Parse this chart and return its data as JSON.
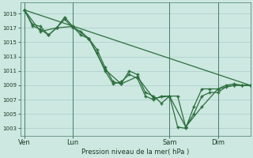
{
  "background_color": "#cce8e0",
  "grid_color": "#aacccc",
  "line_color": "#2d6e3e",
  "xlabel": "Pression niveau de la mer( hPa )",
  "ylim": [
    1002,
    1020.5
  ],
  "yticks": [
    1003,
    1005,
    1007,
    1009,
    1011,
    1013,
    1015,
    1017,
    1019
  ],
  "xtick_labels": [
    "Ven",
    "Lun",
    "Sam",
    "Dim"
  ],
  "xtick_positions": [
    0,
    36,
    108,
    144
  ],
  "vline_positions": [
    0,
    36,
    108,
    144
  ],
  "xlim": [
    -3,
    168
  ],
  "series_smooth": {
    "x": [
      0,
      168
    ],
    "y": [
      1019.5,
      1009.0
    ]
  },
  "series1": {
    "x": [
      0,
      6,
      12,
      18,
      24,
      30,
      36,
      42,
      48,
      54,
      60,
      66,
      72,
      78,
      84,
      90,
      96,
      102,
      108,
      114,
      120,
      126,
      132,
      138,
      144,
      150,
      156,
      162,
      168
    ],
    "y": [
      1019.5,
      1017.5,
      1017.2,
      1016.0,
      1017.0,
      1018.2,
      1017.0,
      1016.5,
      1015.5,
      1014.0,
      1011.5,
      1009.5,
      1009.2,
      1011.0,
      1010.5,
      1008.0,
      1007.5,
      1006.5,
      1007.5,
      1003.2,
      1003.0,
      1006.0,
      1008.5,
      1008.5,
      1008.5,
      1009.0,
      1009.2,
      1009.0,
      1009.0
    ]
  },
  "series2": {
    "x": [
      0,
      6,
      12,
      18,
      24,
      30,
      36,
      42,
      48,
      54,
      60,
      66,
      72,
      78,
      84,
      90,
      96,
      102,
      108,
      114,
      120,
      126,
      132,
      138,
      144,
      150,
      156,
      162,
      168
    ],
    "y": [
      1019.5,
      1017.3,
      1016.8,
      1016.0,
      1017.0,
      1018.5,
      1017.2,
      1016.0,
      1015.5,
      1013.5,
      1011.0,
      1009.2,
      1009.5,
      1010.5,
      1010.0,
      1007.5,
      1007.0,
      1007.5,
      1007.5,
      1007.5,
      1003.2,
      1005.0,
      1007.5,
      1008.0,
      1008.0,
      1008.8,
      1009.0,
      1009.0,
      1009.0
    ]
  },
  "series3": {
    "x": [
      0,
      12,
      24,
      36,
      48,
      60,
      72,
      84,
      96,
      108,
      120,
      132,
      144,
      156,
      168
    ],
    "y": [
      1019.5,
      1016.5,
      1017.0,
      1017.2,
      1015.5,
      1011.2,
      1009.2,
      1010.2,
      1007.2,
      1007.5,
      1003.2,
      1006.0,
      1008.5,
      1009.0,
      1009.0
    ]
  }
}
